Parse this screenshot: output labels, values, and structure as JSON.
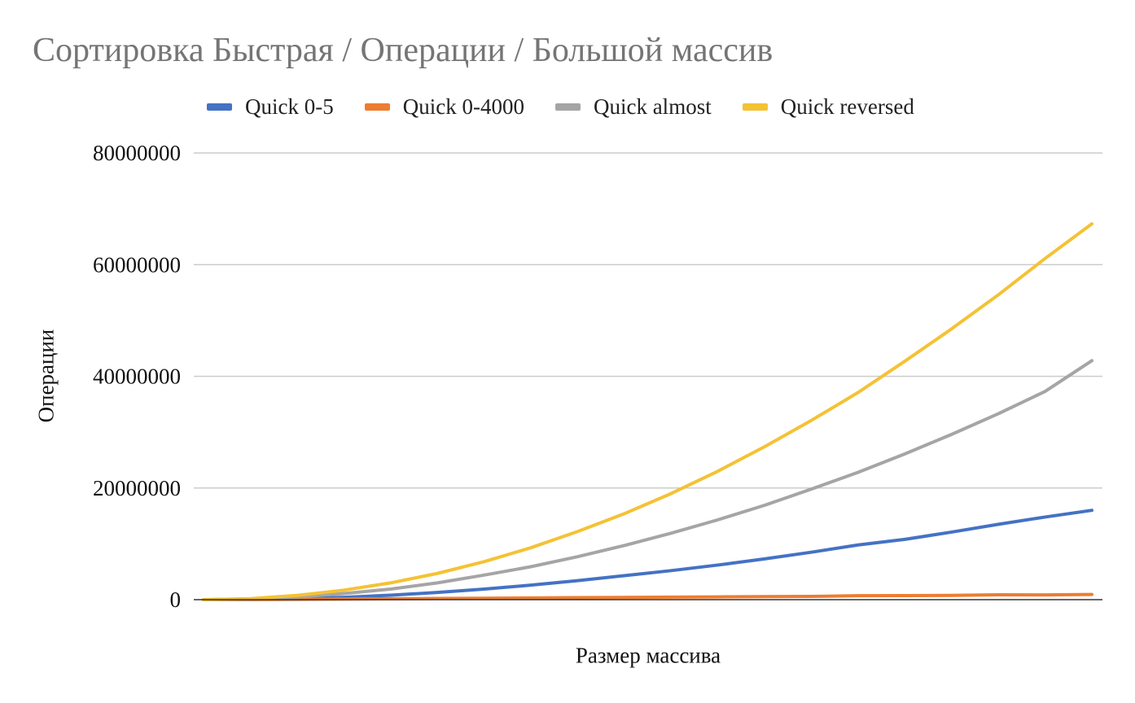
{
  "chart_data": {
    "type": "line",
    "title": "Сортировка Быстрая / Операции / Большой массив",
    "xlabel": "Размер массива",
    "ylabel": "Операции",
    "ylim": [
      0,
      80000000
    ],
    "yticks": [
      0,
      20000000,
      40000000,
      60000000,
      80000000
    ],
    "ytick_labels": [
      "0",
      "20000000",
      "40000000",
      "60000000",
      "80000000"
    ],
    "grid": true,
    "legend_position": "top",
    "x": [
      1,
      2,
      3,
      4,
      5,
      6,
      7,
      8,
      9,
      10,
      11,
      12,
      13,
      14,
      15,
      16,
      17,
      18,
      19,
      20
    ],
    "series": [
      {
        "name": "Quick 0-5",
        "color": "#4472c4",
        "values": [
          0,
          40000,
          180000,
          420000,
          800000,
          1300000,
          1900000,
          2600000,
          3400000,
          4300000,
          5200000,
          6200000,
          7300000,
          8500000,
          9800000,
          10800000,
          12100000,
          13500000,
          14800000,
          16000000
        ]
      },
      {
        "name": "Quick 0-4000",
        "color": "#ed7d31",
        "values": [
          0,
          20000,
          60000,
          110000,
          160000,
          210000,
          260000,
          310000,
          360000,
          410000,
          460000,
          500000,
          540000,
          580000,
          710000,
          720000,
          760000,
          870000,
          850000,
          930000
        ]
      },
      {
        "name": "Quick almost",
        "color": "#a5a5a5",
        "values": [
          0,
          120000,
          480000,
          1100000,
          1900000,
          3000000,
          4400000,
          5900000,
          7700000,
          9700000,
          11900000,
          14300000,
          16900000,
          19800000,
          22800000,
          26100000,
          29600000,
          33300000,
          37300000,
          42800000
        ]
      },
      {
        "name": "Quick reversed",
        "color": "#f4c234",
        "values": [
          0,
          190000,
          760000,
          1700000,
          3000000,
          4700000,
          6800000,
          9300000,
          12200000,
          15400000,
          19000000,
          23000000,
          27400000,
          32100000,
          37100000,
          42700000,
          48500000,
          54600000,
          61100000,
          67300000
        ]
      }
    ]
  }
}
